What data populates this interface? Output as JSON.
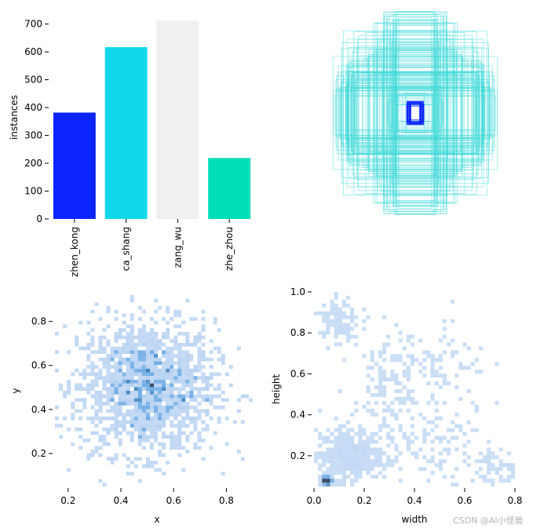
{
  "chart_data": [
    {
      "type": "bar",
      "categories": [
        "zhen_kong",
        "ca_shang",
        "zang_wu",
        "zhe_zhou"
      ],
      "values": [
        382,
        617,
        712,
        219
      ],
      "colors": [
        "#0b24fb",
        "#0fd8e8",
        "#f0f0f0",
        "#00dfb7"
      ],
      "ylabel": "instances",
      "ylim": [
        0,
        730
      ],
      "yticks": [
        0,
        100,
        200,
        300,
        400,
        500,
        600,
        700
      ],
      "grid": false
    },
    {
      "type": "scatter",
      "description_kind": "overlaid bounding boxes centred at (0.5, 0.5)",
      "colors": {
        "outer": "#40d8d8",
        "inner": "#0b24fb"
      },
      "grid": false
    },
    {
      "type": "heatmap",
      "xlabel": "x",
      "ylabel": "y",
      "xticks": [
        0.2,
        0.4,
        0.6,
        0.8
      ],
      "yticks": [
        0.2,
        0.4,
        0.6,
        0.8
      ],
      "xlim": [
        0.15,
        0.9
      ],
      "ylim": [
        0.05,
        0.92
      ],
      "center": [
        0.5,
        0.5
      ],
      "spread": [
        0.13,
        0.15
      ],
      "color": "#1f77d8"
    },
    {
      "type": "heatmap",
      "xlabel": "width",
      "ylabel": "height",
      "xticks": [
        0.0,
        0.2,
        0.4,
        0.6,
        0.8
      ],
      "xtick_labels": [
        "0.0",
        "0.2",
        "0.4",
        "0.6",
        "0.8"
      ],
      "yticks": [
        0.2,
        0.4,
        0.6,
        0.8,
        1.0
      ],
      "xlim": [
        0.0,
        0.8
      ],
      "ylim": [
        0.05,
        1.0
      ],
      "clusters": [
        {
          "x": 0.05,
          "y": 0.08,
          "weight": "high"
        },
        {
          "x": 0.12,
          "y": 0.18,
          "weight": "high"
        },
        {
          "x": 0.1,
          "y": 0.85,
          "weight": "medium"
        },
        {
          "x": 0.5,
          "y": 0.7,
          "weight": "low"
        },
        {
          "x": 0.7,
          "y": 0.2,
          "weight": "low"
        }
      ],
      "color": "#1f77d8"
    }
  ],
  "watermark": "CSDN @AI小怪兽"
}
